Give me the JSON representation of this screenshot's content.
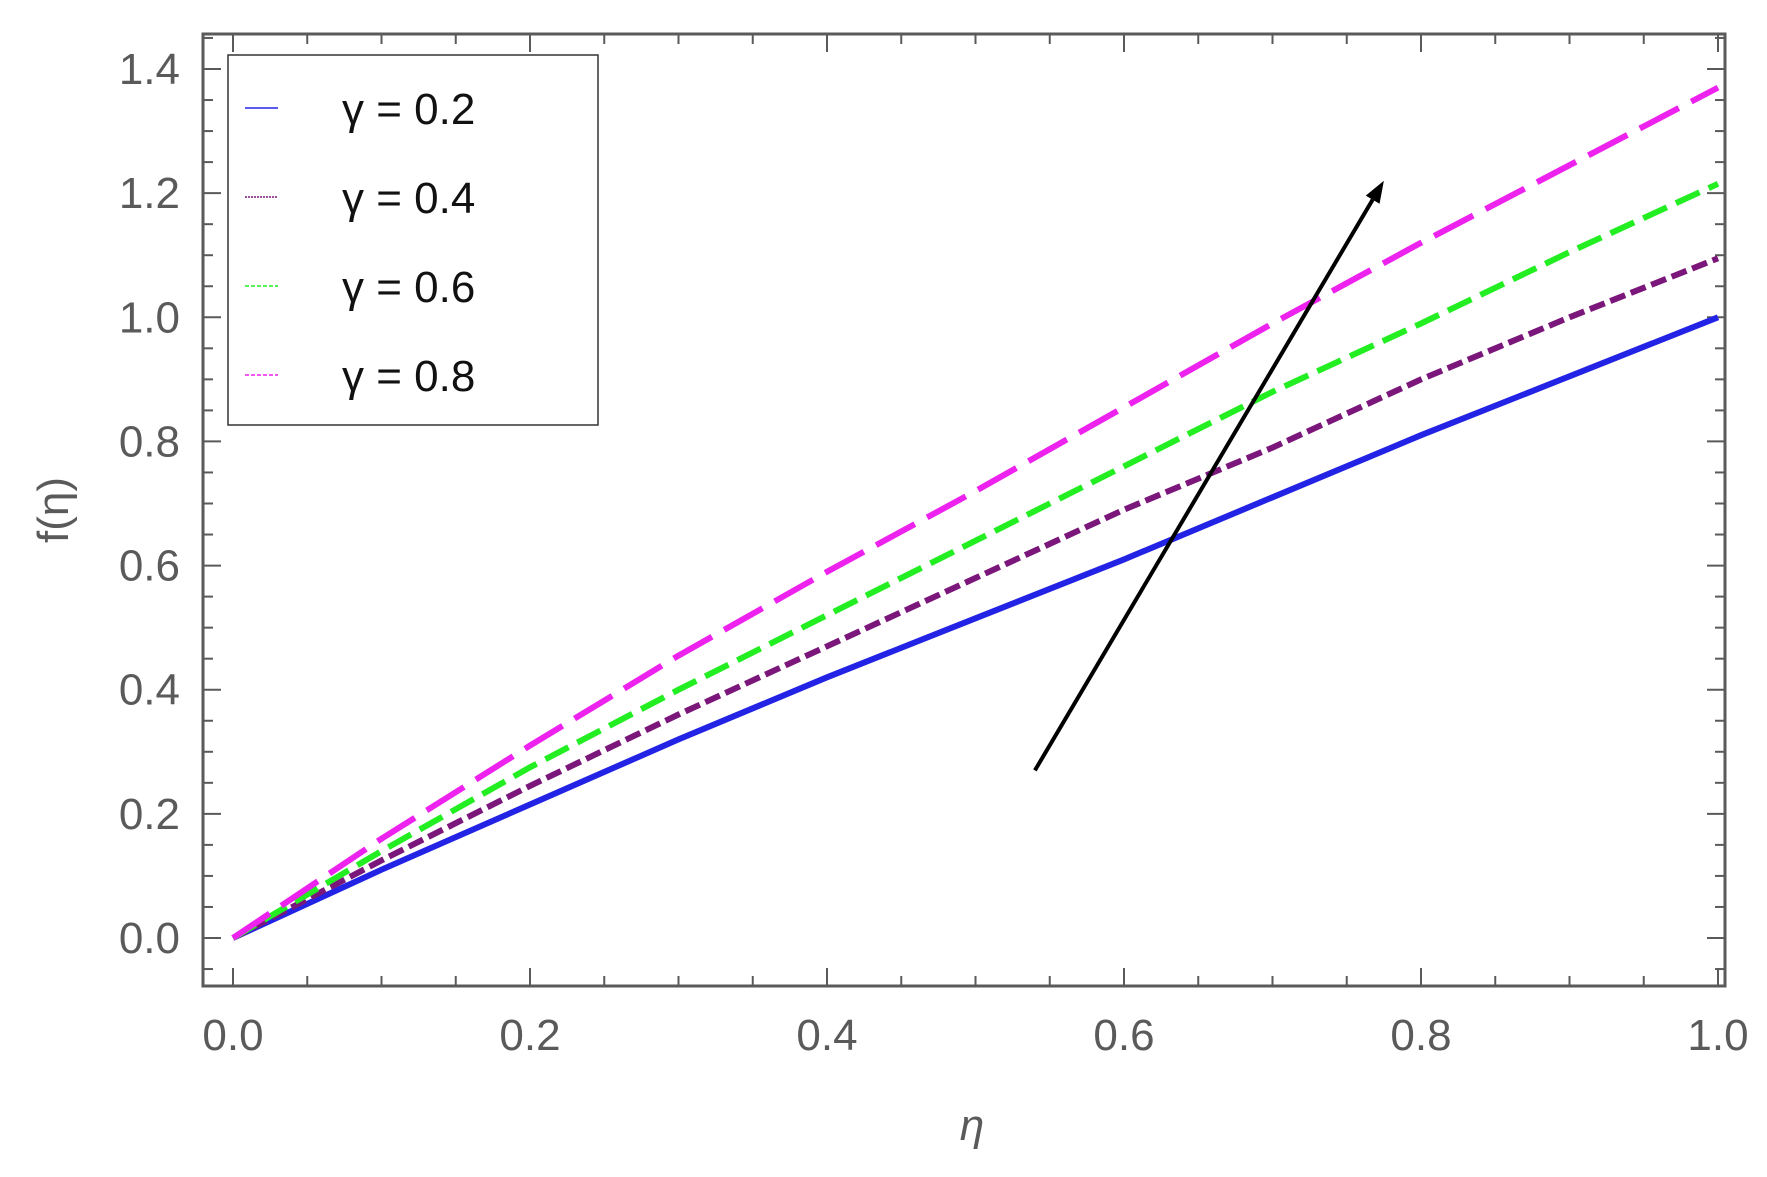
{
  "chart_data": {
    "type": "line",
    "title": "",
    "xlabel": "η",
    "ylabel": "f(η)",
    "xlim": [
      0.0,
      1.0
    ],
    "ylim": [
      -0.08,
      1.45
    ],
    "x_ticks": [
      "0.0",
      "0.2",
      "0.4",
      "0.6",
      "0.8",
      "1.0"
    ],
    "y_ticks": [
      "0.0",
      "0.2",
      "0.4",
      "0.6",
      "0.8",
      "1.0",
      "1.2",
      "1.4"
    ],
    "x": [
      0.0,
      0.1,
      0.2,
      0.3,
      0.4,
      0.5,
      0.6,
      0.7,
      0.8,
      0.9,
      1.0
    ],
    "series": [
      {
        "name": "γ = 0.2",
        "color": "#2323e6",
        "dash": "solid",
        "values": [
          0.0,
          0.11,
          0.215,
          0.32,
          0.42,
          0.515,
          0.61,
          0.71,
          0.81,
          0.905,
          1.0
        ]
      },
      {
        "name": "γ = 0.4",
        "color": "#7b167b",
        "dash": "short-dash",
        "values": [
          0.0,
          0.125,
          0.245,
          0.36,
          0.47,
          0.58,
          0.69,
          0.79,
          0.9,
          1.0,
          1.095
        ]
      },
      {
        "name": "γ = 0.6",
        "color": "#22ee22",
        "dash": "dash",
        "values": [
          0.0,
          0.14,
          0.275,
          0.4,
          0.52,
          0.64,
          0.76,
          0.88,
          0.99,
          1.105,
          1.215
        ]
      },
      {
        "name": "γ = 0.8",
        "color": "#ee22ee",
        "dash": "long-dash",
        "values": [
          0.0,
          0.16,
          0.31,
          0.455,
          0.59,
          0.72,
          0.855,
          0.99,
          1.12,
          1.245,
          1.37
        ]
      }
    ],
    "annotation": {
      "type": "arrow",
      "from": [
        0.54,
        0.27
      ],
      "to": [
        0.775,
        1.22
      ],
      "color": "#000000"
    },
    "legend_placement": "top-left",
    "grid": false,
    "frame_color": "#5a5a5a"
  }
}
